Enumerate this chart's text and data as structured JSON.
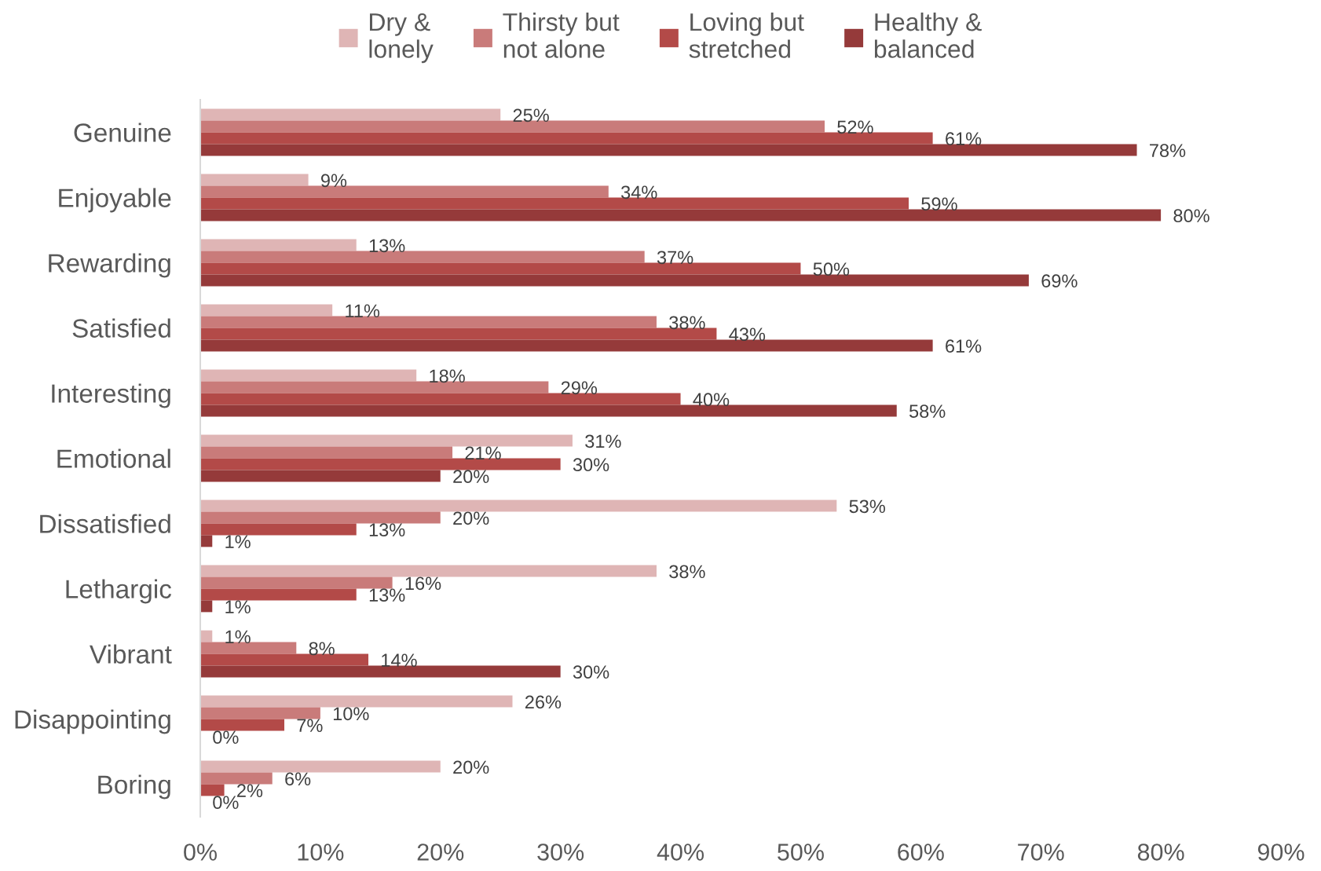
{
  "chart_data": {
    "type": "bar",
    "orientation": "horizontal",
    "categories": [
      "Genuine",
      "Enjoyable",
      "Rewarding",
      "Satisfied",
      "Interesting",
      "Emotional",
      "Dissatisfied",
      "Lethargic",
      "Vibrant",
      "Disappointing",
      "Boring"
    ],
    "series": [
      {
        "name": "Dry &\nlonely",
        "color": "#dfb5b5",
        "values": [
          25,
          9,
          13,
          11,
          18,
          31,
          53,
          38,
          1,
          26,
          20
        ],
        "value_labels": [
          "25%",
          "9%",
          "13%",
          "11%",
          "18%",
          "31%",
          "53%",
          "38%",
          "1%",
          "26%",
          "20%"
        ]
      },
      {
        "name": "Thirsty but\nnot alone",
        "color": "#c97b7a",
        "values": [
          52,
          34,
          37,
          38,
          29,
          21,
          20,
          16,
          8,
          10,
          6
        ],
        "value_labels": [
          "52%",
          "34%",
          "37%",
          "38%",
          "29%",
          "21%",
          "20%",
          "16%",
          "8%",
          "10%",
          "6%"
        ]
      },
      {
        "name": "Loving but\nstretched",
        "color": "#b34a48",
        "values": [
          61,
          59,
          50,
          43,
          40,
          30,
          13,
          13,
          14,
          7,
          2
        ],
        "value_labels": [
          "61%",
          "59%",
          "50%",
          "43%",
          "40%",
          "30%",
          "13%",
          "13%",
          "14%",
          "7%",
          "2%"
        ]
      },
      {
        "name": "Healthy &\nbalanced",
        "color": "#953a3a",
        "values": [
          78,
          80,
          69,
          61,
          58,
          20,
          1,
          1,
          30,
          0,
          0
        ],
        "value_labels": [
          "78%",
          "80%",
          "69%",
          "61%",
          "58%",
          "20%",
          "1%",
          "1%",
          "30%",
          "0%",
          "0%"
        ]
      }
    ],
    "xlim": [
      0,
      90
    ],
    "xticks": [
      {
        "value": 0,
        "label": "0%"
      },
      {
        "value": 10,
        "label": "10%"
      },
      {
        "value": 20,
        "label": "20%"
      },
      {
        "value": 30,
        "label": "30%"
      },
      {
        "value": 40,
        "label": "40%"
      },
      {
        "value": 50,
        "label": "50%"
      },
      {
        "value": 60,
        "label": "60%"
      },
      {
        "value": 70,
        "label": "70%"
      },
      {
        "value": 80,
        "label": "80%"
      },
      {
        "value": 90,
        "label": "90%"
      }
    ],
    "grid": false,
    "legend": "top"
  }
}
